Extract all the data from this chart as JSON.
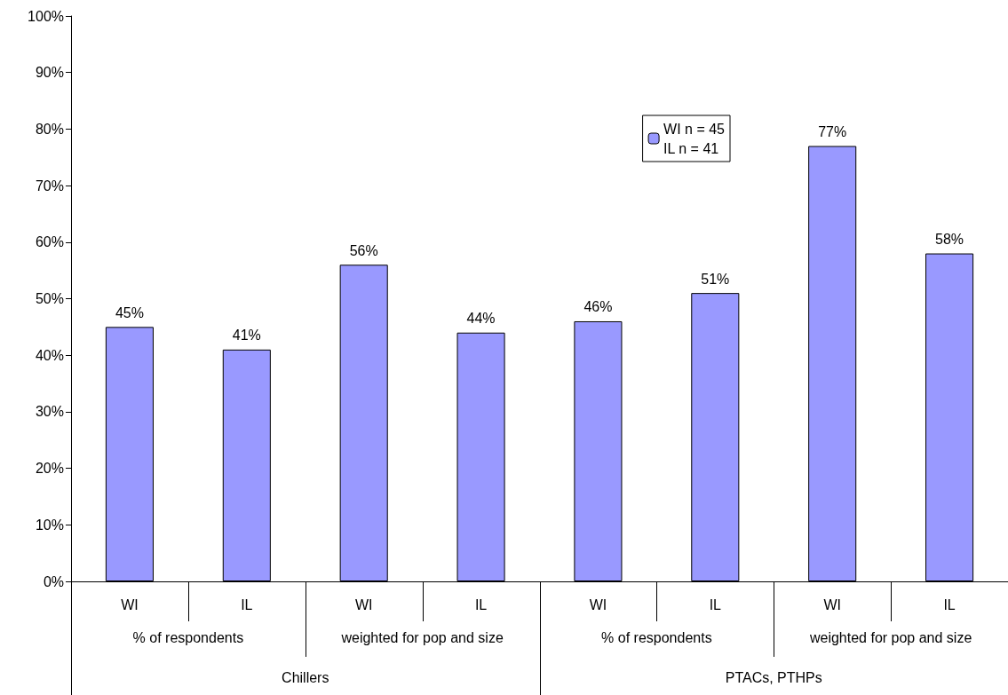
{
  "chart_data": {
    "type": "bar",
    "categories": [
      "WI",
      "IL",
      "WI",
      "IL",
      "WI",
      "IL",
      "WI",
      "IL"
    ],
    "series": [
      {
        "name": "WI n = 45\nIL n = 41",
        "color": "#9999ff",
        "values": [
          45,
          41,
          56,
          44,
          46,
          51,
          77,
          58
        ],
        "value_labels": [
          "45%",
          "41%",
          "56%",
          "44%",
          "46%",
          "51%",
          "77%",
          "58%"
        ]
      }
    ],
    "annotations": [
      "% of respondents",
      "weighted for pop and size",
      "% of respondents",
      "weighted for pop and size",
      "Chillers",
      "PTACs, PTHPs"
    ],
    "ylim": [
      0,
      100
    ],
    "yticks": [
      {
        "value": 0,
        "label": "0%"
      },
      {
        "value": 10,
        "label": "10%"
      },
      {
        "value": 20,
        "label": "20%"
      },
      {
        "value": 30,
        "label": "30%"
      },
      {
        "value": 40,
        "label": "40%"
      },
      {
        "value": 50,
        "label": "50%"
      },
      {
        "value": 60,
        "label": "60%"
      },
      {
        "value": 70,
        "label": "70%"
      },
      {
        "value": 80,
        "label": "80%"
      },
      {
        "value": 90,
        "label": "90%"
      },
      {
        "value": 100,
        "label": "100%"
      }
    ],
    "grid": false,
    "legend": "top right"
  }
}
